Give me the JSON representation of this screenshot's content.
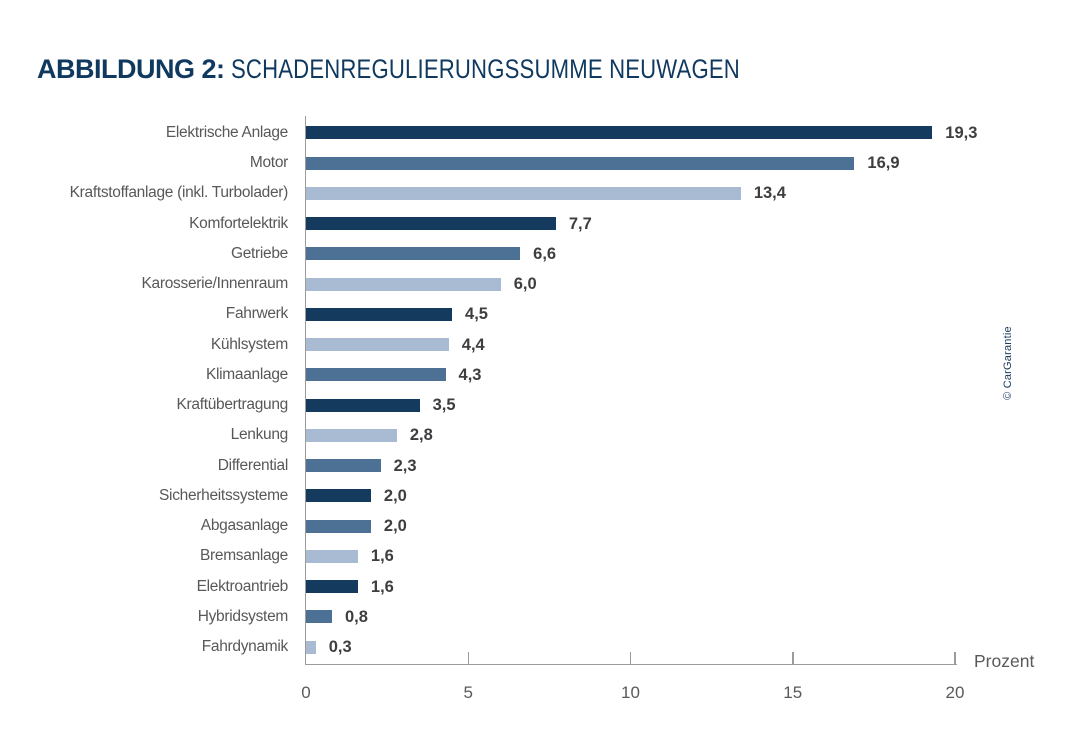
{
  "title": {
    "prefix": "ABBILDUNG 2:",
    "main": "SCHADENREGULIERUNGSSUMME NEUWAGEN"
  },
  "credit": "© CarGarantie",
  "chart_data": {
    "type": "bar",
    "orientation": "horizontal",
    "title": "ABBILDUNG 2: SCHADENREGULIERUNGSSUMME NEUWAGEN",
    "categories": [
      "Elektrische Anlage",
      "Motor",
      "Kraftstoffanlage (inkl. Turbolader)",
      "Komfortelektrik",
      "Getriebe",
      "Karosserie/Innenraum",
      "Fahrwerk",
      "Kühlsystem",
      "Klimaanlage",
      "Kraftübertragung",
      "Lenkung",
      "Differential",
      "Sicherheitssysteme",
      "Abgasanlage",
      "Bremsanlage",
      "Elektroantrieb",
      "Hybridsystem",
      "Fahrdynamik"
    ],
    "values": [
      19.3,
      16.9,
      13.4,
      7.7,
      6.6,
      6.0,
      4.5,
      4.4,
      4.3,
      3.5,
      2.8,
      2.3,
      2.0,
      2.0,
      1.6,
      1.6,
      0.8,
      0.3
    ],
    "value_labels": [
      "19,3",
      "16,9",
      "13,4",
      "7,7",
      "6,6",
      "6,0",
      "4,5",
      "4,4",
      "4,3",
      "3,5",
      "2,8",
      "2,3",
      "2,0",
      "2,0",
      "1,6",
      "1,6",
      "0,8",
      "0,3"
    ],
    "xlabel": "Prozent",
    "xlim": [
      0,
      20
    ],
    "x_ticks": [
      0,
      5,
      10,
      15,
      20
    ],
    "grid": false,
    "legend": "none",
    "palette": {
      "dark": "#143a5d",
      "medium": "#4d7095",
      "light": "#a8bbd3"
    },
    "color_pattern": [
      "dark",
      "medium",
      "light",
      "dark",
      "medium",
      "light",
      "dark",
      "light",
      "medium",
      "dark",
      "light",
      "medium",
      "dark",
      "medium",
      "light",
      "dark",
      "medium",
      "light"
    ]
  }
}
